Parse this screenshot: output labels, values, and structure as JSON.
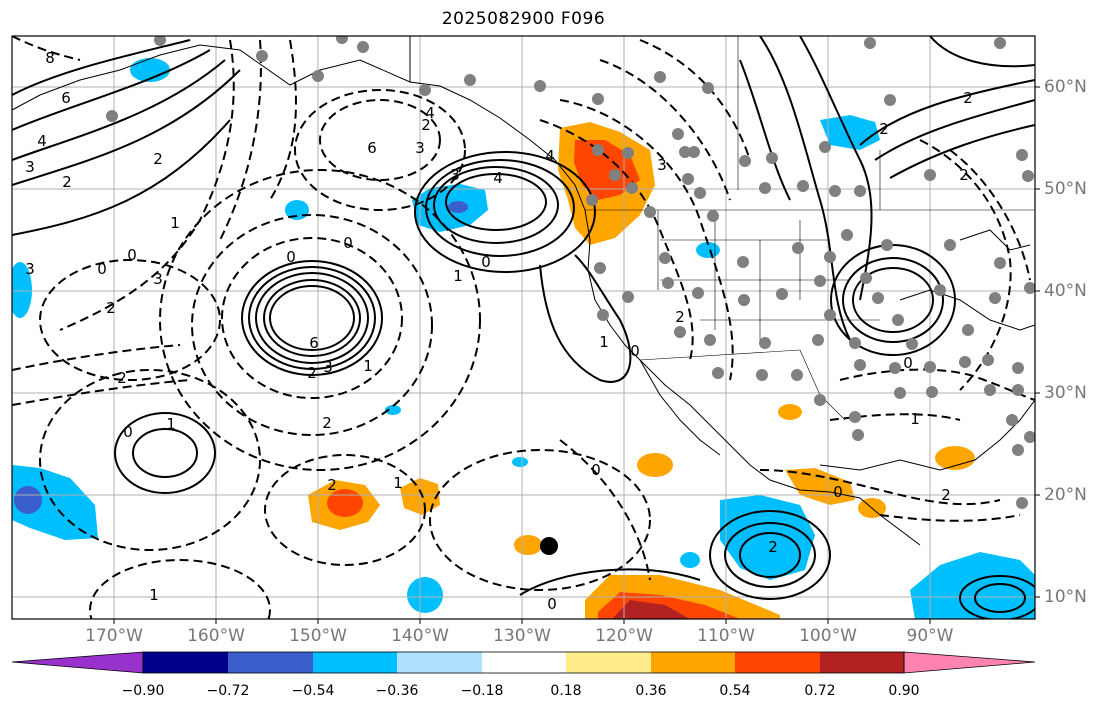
{
  "title": "2025082900 F096",
  "longitude_labels": [
    "170°W",
    "160°W",
    "150°W",
    "140°W",
    "130°W",
    "120°W",
    "110°W",
    "100°W",
    "90°W"
  ],
  "latitude_labels": [
    "60°N",
    "50°N",
    "40°N",
    "30°N",
    "20°N",
    "10°N"
  ],
  "colorbar": {
    "colors": [
      "#9932cc",
      "#00008b",
      "#3a5fcd",
      "#00bfff",
      "#b0e2ff",
      "#ffffff",
      "#ffec8b",
      "#ffa500",
      "#ff4500",
      "#b22222",
      "#ff83b0"
    ],
    "tick_labels": [
      "−0.90",
      "−0.72",
      "−0.54",
      "−0.36",
      "−0.18",
      "0.18",
      "0.36",
      "0.54",
      "0.72",
      "0.90"
    ]
  },
  "contour_labels": [
    "8",
    "6",
    "4",
    "3",
    "2",
    "2",
    "1",
    "0",
    "3",
    "0",
    "3",
    "2",
    "6",
    "3",
    "2",
    "4",
    "3",
    "4",
    "6",
    "3",
    "2",
    "0",
    "1",
    "0",
    "1",
    "2",
    "2",
    "1",
    "0",
    "1",
    "2",
    "0",
    "0",
    "0",
    "1",
    "3",
    "4",
    "2",
    "0",
    "1",
    "2",
    "2",
    "2",
    "0",
    "1",
    "2",
    "0",
    "2"
  ],
  "station_marker": "black dot"
}
